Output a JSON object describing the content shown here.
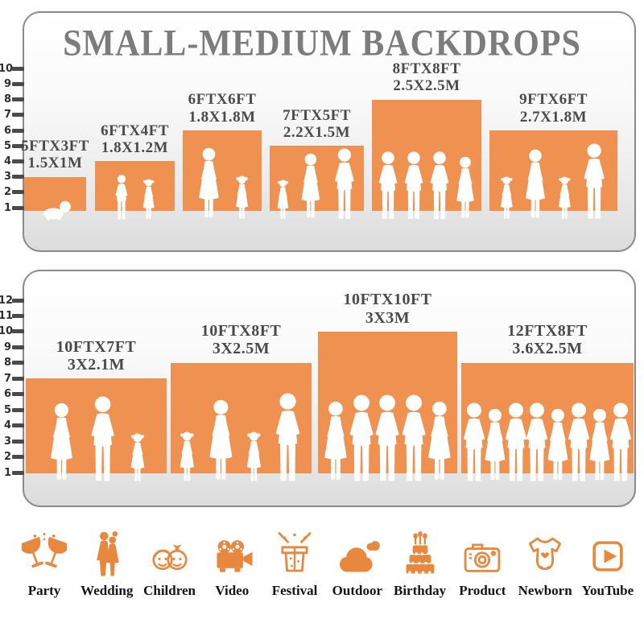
{
  "title": "SMALL-MEDIUM BACKDROPS",
  "colors": {
    "bar_orange": "#ef9251",
    "icon_orange": "#e8883e",
    "title_gray": "#7c7c7c",
    "label_gray": "#4a4a4a"
  },
  "panels": [
    {
      "name": "small-medium-panel",
      "ruler": [
        "10",
        "9",
        "8",
        "7",
        "6",
        "5",
        "4",
        "3",
        "2",
        "1"
      ],
      "bars": [
        {
          "size_ft": "5FTX3FT",
          "size_m": "1.5X1M",
          "height_ft": 3,
          "figures": [
            "baby"
          ]
        },
        {
          "size_ft": "6FTX4FT",
          "size_m": "1.8X1.2M",
          "height_ft": 4,
          "figures": [
            "boy",
            "girl"
          ]
        },
        {
          "size_ft": "6FTX6FT",
          "size_m": "1.8X1.8M",
          "height_ft": 6,
          "figures": [
            "woman",
            "girl"
          ]
        },
        {
          "size_ft": "7FTX5FT",
          "size_m": "2.2X1.5M",
          "height_ft": 5,
          "figures": [
            "girl",
            "woman",
            "man"
          ]
        },
        {
          "size_ft": "8FTX8FT",
          "size_m": "2.5X2.5M",
          "height_ft": 8,
          "figures": [
            "man",
            "man",
            "man",
            "woman"
          ]
        },
        {
          "size_ft": "9FTX6FT",
          "size_m": "2.7X1.8M",
          "height_ft": 6,
          "figures": [
            "girl",
            "woman",
            "girl",
            "man"
          ]
        }
      ]
    },
    {
      "name": "medium-large-panel",
      "ruler": [
        "12",
        "11",
        "10",
        "9",
        "8",
        "7",
        "6",
        "5",
        "4",
        "3",
        "2",
        "1"
      ],
      "bars": [
        {
          "size_ft": "10FTX7FT",
          "size_m": "3X2.1M",
          "height_ft": 7,
          "figures": [
            "woman",
            "man",
            "girl"
          ]
        },
        {
          "size_ft": "10FTX8FT",
          "size_m": "3X2.5M",
          "height_ft": 8,
          "figures": [
            "girl",
            "woman",
            "girl",
            "man"
          ]
        },
        {
          "size_ft": "10FTX10FT",
          "size_m": "3X3M",
          "height_ft": 10,
          "figures": [
            "woman",
            "man",
            "man",
            "man",
            "woman"
          ]
        },
        {
          "size_ft": "12FTX8FT",
          "size_m": "3.6X2.5M",
          "height_ft": 8,
          "figures": [
            "man",
            "woman",
            "man",
            "man",
            "woman",
            "man",
            "woman",
            "man"
          ]
        }
      ]
    }
  ],
  "categories": [
    {
      "label": "Party",
      "icon": "party-icon"
    },
    {
      "label": "Wedding",
      "icon": "wedding-icon"
    },
    {
      "label": "Children",
      "icon": "children-icon"
    },
    {
      "label": "Video",
      "icon": "video-icon"
    },
    {
      "label": "Festival",
      "icon": "festival-icon"
    },
    {
      "label": "Outdoor",
      "icon": "outdoor-icon"
    },
    {
      "label": "Birthday",
      "icon": "birthday-icon"
    },
    {
      "label": "Product",
      "icon": "product-icon"
    },
    {
      "label": "Newborn",
      "icon": "newborn-icon"
    },
    {
      "label": "YouTube",
      "icon": "youtube-icon"
    }
  ],
  "chart_data": [
    {
      "type": "bar",
      "title": "SMALL-MEDIUM BACKDROPS",
      "categories": [
        "5FTX3FT",
        "6FTX4FT",
        "6FTX6FT",
        "7FTX5FT",
        "8FTX8FT",
        "9FTX6FT"
      ],
      "series": [
        {
          "name": "height_ft",
          "values": [
            3,
            4,
            6,
            5,
            8,
            6
          ]
        },
        {
          "name": "width_ft",
          "values": [
            5,
            6,
            6,
            7,
            8,
            9
          ]
        }
      ],
      "metric_sizes": [
        "1.5X1M",
        "1.8X1.2M",
        "1.8X1.8M",
        "2.2X1.5M",
        "2.5X2.5M",
        "2.7X1.8M"
      ],
      "ylabel": "feet",
      "ylim": [
        0,
        10
      ],
      "yticks": [
        1,
        2,
        3,
        4,
        5,
        6,
        7,
        8,
        9,
        10
      ],
      "grid": false,
      "legend": false
    },
    {
      "type": "bar",
      "title": "",
      "categories": [
        "10FTX7FT",
        "10FTX8FT",
        "10FTX10FT",
        "12FTX8FT"
      ],
      "series": [
        {
          "name": "height_ft",
          "values": [
            7,
            8,
            10,
            8
          ]
        },
        {
          "name": "width_ft",
          "values": [
            10,
            10,
            10,
            12
          ]
        }
      ],
      "metric_sizes": [
        "3X2.1M",
        "3X2.5M",
        "3X3M",
        "3.6X2.5M"
      ],
      "ylabel": "feet",
      "ylim": [
        0,
        12
      ],
      "yticks": [
        1,
        2,
        3,
        4,
        5,
        6,
        7,
        8,
        9,
        10,
        11,
        12
      ],
      "grid": false,
      "legend": false
    }
  ]
}
